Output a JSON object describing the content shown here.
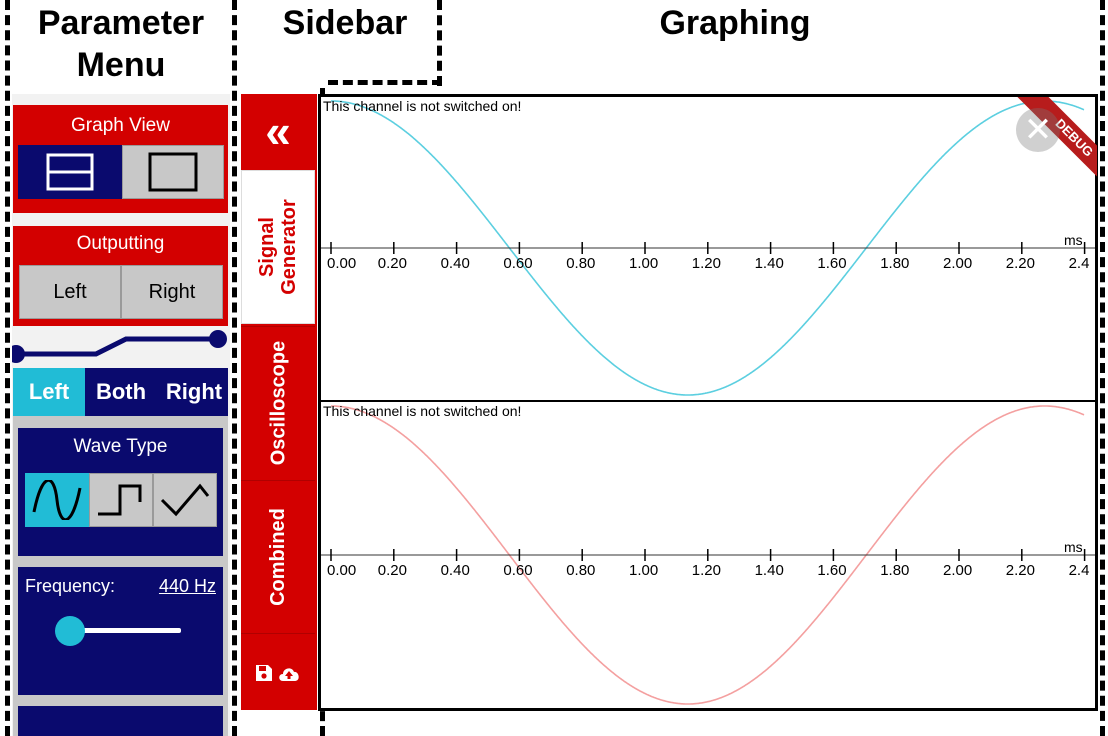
{
  "headers": {
    "parameter_menu": "Parameter\nMenu",
    "sidebar": "Sidebar",
    "graphing": "Graphing"
  },
  "parameter_menu": {
    "graph_view": {
      "title": "Graph View",
      "options": [
        "split-view-icon",
        "single-view-icon"
      ],
      "selected": 0
    },
    "outputting": {
      "title": "Outputting",
      "left": "Left",
      "right": "Right"
    },
    "channel_tabs": {
      "left": "Left",
      "both": "Both",
      "right": "Right",
      "selected": "Left"
    },
    "wave_type": {
      "title": "Wave Type",
      "options": [
        "sine-wave-icon",
        "square-wave-icon",
        "triangle-wave-icon"
      ],
      "selected": 0
    },
    "frequency": {
      "label": "Frequency:",
      "value": "440 Hz",
      "slider_level": 0.0
    }
  },
  "sidebar": {
    "collapse_icon": "«",
    "tabs": [
      {
        "label": "Signal\nGenerator",
        "active": true
      },
      {
        "label": "Oscilloscope",
        "active": false
      },
      {
        "label": "Combined",
        "active": false
      }
    ],
    "bottom_icons": [
      "save-icon",
      "cloud-upload-icon"
    ]
  },
  "graphs": [
    {
      "message": "This channel is not switched on!",
      "unit": "ms",
      "ticks": [
        "0.00",
        "0.20",
        "0.40",
        "0.60",
        "0.80",
        "1.00",
        "1.20",
        "1.40",
        "1.60",
        "1.80",
        "2.00",
        "2.20",
        "2.4"
      ],
      "color": "#5ccfe0",
      "frequency_hz": 440
    },
    {
      "message": "This channel is not switched on!",
      "unit": "ms",
      "ticks": [
        "0.00",
        "0.20",
        "0.40",
        "0.60",
        "0.80",
        "1.00",
        "1.20",
        "1.40",
        "1.60",
        "1.80",
        "2.00",
        "2.20",
        "2.4"
      ],
      "color": "#f4a0a0",
      "frequency_hz": 440
    }
  ],
  "debug_banner": "DEBUG",
  "colors": {
    "red": "#d30000",
    "navy": "#0a0a6e",
    "cyan": "#21bcd6",
    "gray": "#c8c8c8"
  }
}
